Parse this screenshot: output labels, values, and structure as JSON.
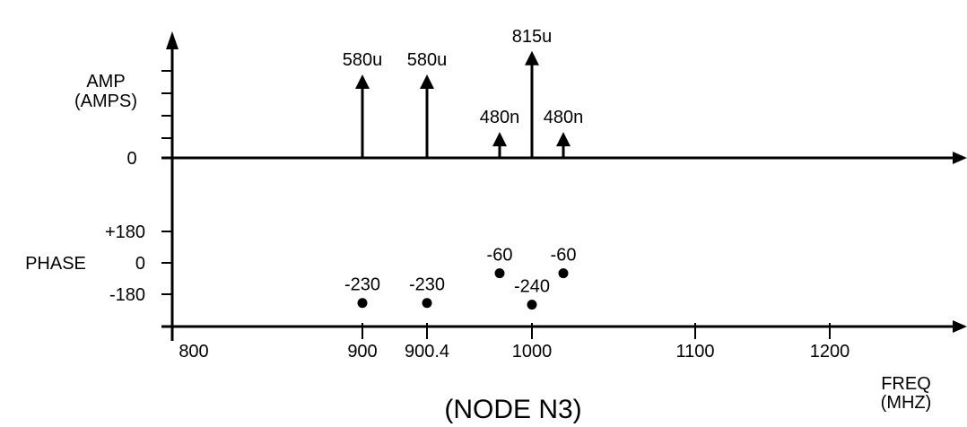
{
  "chart_data": {
    "type": "stem",
    "caption": "(NODE N3)",
    "x_axis": {
      "label_line1": "FREQ",
      "label_line2": "(MHZ)",
      "ticks": [
        {
          "value": 800,
          "label": "800"
        },
        {
          "value": 900,
          "label": "900"
        },
        {
          "value": 900.4,
          "label": "900.4"
        },
        {
          "value": 1000,
          "label": "1000"
        },
        {
          "value": 1100,
          "label": "1100"
        },
        {
          "value": 1200,
          "label": "1200"
        }
      ]
    },
    "amplitude": {
      "label_line1": "AMP",
      "label_line2": "(AMPS)",
      "zero_label": "0",
      "stems": [
        {
          "freq": 900,
          "label": "580u",
          "rel_height": 0.71
        },
        {
          "freq": 900.4,
          "label": "580u",
          "rel_height": 0.71
        },
        {
          "freq": 980,
          "label": "480n",
          "rel_height": 0.22
        },
        {
          "freq": 1000,
          "label": "815u",
          "rel_height": 0.91
        },
        {
          "freq": 1020,
          "label": "480n",
          "rel_height": 0.22
        }
      ]
    },
    "phase": {
      "label": "PHASE",
      "ticks": [
        {
          "value": 180,
          "label": "+180"
        },
        {
          "value": 0,
          "label": "0"
        },
        {
          "value": -180,
          "label": "-180"
        }
      ],
      "points": [
        {
          "freq": 900,
          "value": -230,
          "label": "-230"
        },
        {
          "freq": 900.4,
          "value": -230,
          "label": "-230"
        },
        {
          "freq": 980,
          "value": -60,
          "label": "-60"
        },
        {
          "freq": 1000,
          "value": -240,
          "label": "-240"
        },
        {
          "freq": 1020,
          "value": -60,
          "label": "-60"
        }
      ]
    }
  }
}
